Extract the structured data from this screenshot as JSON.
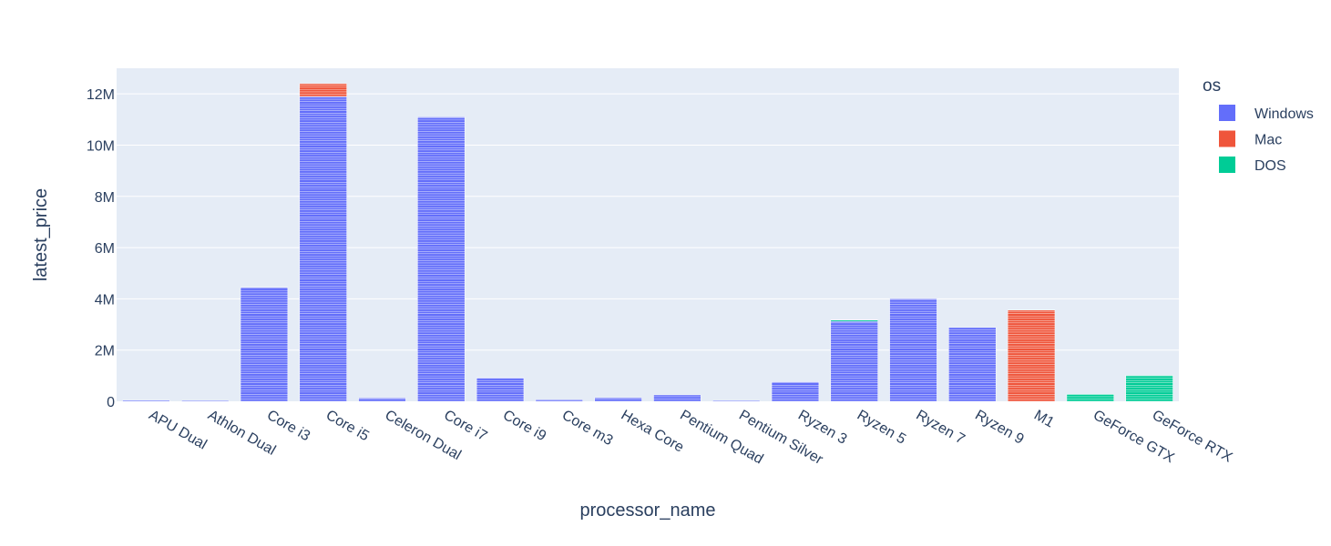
{
  "chart_data": {
    "type": "bar",
    "barmode": "stack",
    "xlabel": "processor_name",
    "ylabel": "latest_price",
    "ylim": [
      0,
      13000000
    ],
    "yticks": [
      0,
      2000000,
      4000000,
      6000000,
      8000000,
      10000000,
      12000000
    ],
    "ytick_labels": [
      "0",
      "2M",
      "4M",
      "6M",
      "8M",
      "10M",
      "12M"
    ],
    "grid": true,
    "background": "#e5ecf6",
    "categories": [
      "APU Dual",
      "Athlon Dual",
      "Core i3",
      "Core i5",
      "Celeron Dual",
      "Core i7",
      "Core i9",
      "Core m3",
      "Hexa Core",
      "Pentium Quad",
      "Pentium Silver",
      "Ryzen 3",
      "Ryzen 5",
      "Ryzen 7",
      "Ryzen 9",
      "M1",
      "GeForce GTX",
      "GeForce RTX"
    ],
    "legend": {
      "title": "os",
      "placement": "right"
    },
    "series": [
      {
        "name": "Windows",
        "color": "#636efa",
        "values": [
          40000,
          30000,
          4450000,
          11900000,
          130000,
          11100000,
          920000,
          60000,
          140000,
          250000,
          30000,
          760000,
          3120000,
          4000000,
          2880000,
          0,
          0,
          0
        ]
      },
      {
        "name": "Mac",
        "color": "#ef553b",
        "values": [
          0,
          0,
          0,
          500000,
          0,
          0,
          0,
          0,
          0,
          0,
          0,
          0,
          0,
          0,
          0,
          3560000,
          0,
          0
        ]
      },
      {
        "name": "DOS",
        "color": "#00cc96",
        "values": [
          0,
          0,
          0,
          0,
          0,
          0,
          0,
          0,
          0,
          0,
          0,
          0,
          50000,
          0,
          0,
          0,
          280000,
          1010000
        ]
      }
    ]
  }
}
